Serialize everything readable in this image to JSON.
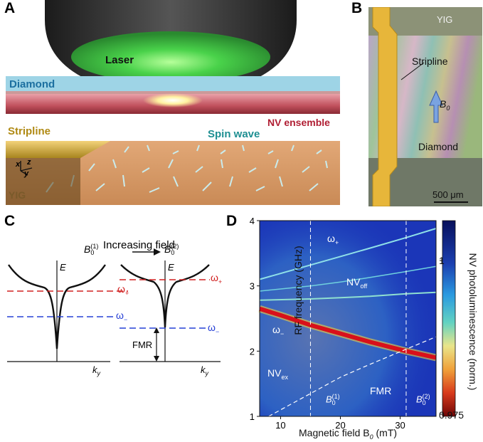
{
  "panels": {
    "A": {
      "label": "A",
      "laser": "Laser",
      "diamond": "Diamond",
      "nv_ensemble": "NV ensemble",
      "stripline": "Stripline",
      "spin_wave": "Spin wave",
      "yig": "YIG",
      "axis_x": "x",
      "axis_y": "y",
      "axis_z": "z"
    },
    "B": {
      "label": "B",
      "yig": "YIG",
      "stripline": "Stripline",
      "field": "B",
      "field_sub": "0",
      "diamond": "Diamond",
      "scale_bar": "500 μm"
    },
    "C": {
      "label": "C",
      "b1": "B",
      "b1_sub": "0",
      "b1_sup": "(1)",
      "arrow_text": "Increasing field",
      "b2": "B",
      "b2_sub": "0",
      "b2_sup": "(2)",
      "energy": "E",
      "omega_plus": "ω",
      "omega_plus_sub": "+",
      "omega_minus": "ω",
      "omega_minus_sub": "−",
      "fmr": "FMR",
      "k_axis": "k",
      "k_sub": "y"
    },
    "D": {
      "label": "D",
      "colorbar_label": "NV photoluminescence (norm.)",
      "colorbar_ticks": [
        "1",
        "0.975"
      ],
      "annotations": {
        "omega_plus": "ω",
        "omega_plus_sub": "+",
        "nv_off": "NV",
        "nv_off_sub": "off",
        "omega_minus": "ω",
        "omega_minus_sub": "−",
        "nv_ex": "NV",
        "nv_ex_sub": "ex",
        "fmr": "FMR",
        "b1": "B",
        "b1_sub": "0",
        "b1_sup": "(1)",
        "b2": "B",
        "b2_sub": "0",
        "b2_sup": "(2)"
      }
    }
  },
  "chart_data": {
    "type": "heatmap",
    "xlabel": "Magnetic field B",
    "xlabel_sub": "0",
    "xlabel_unit": " (mT)",
    "ylabel": "RF frequency (GHz)",
    "xlim": [
      6.5,
      36
    ],
    "ylim": [
      1,
      4
    ],
    "x_ticks": [
      "10",
      "20",
      "30"
    ],
    "x_tick_values": [
      10,
      20,
      30
    ],
    "y_ticks": [
      "1",
      "2",
      "3",
      "4"
    ],
    "y_tick_values": [
      1,
      2,
      3,
      4
    ],
    "vlines": [
      15,
      31
    ],
    "series": [
      {
        "name": "ω+",
        "x": [
          6.5,
          15,
          20,
          25,
          31,
          36
        ],
        "y": [
          3.1,
          3.32,
          3.45,
          3.58,
          3.74,
          3.88
        ]
      },
      {
        "name": "NVoff",
        "x": [
          6.5,
          15,
          20,
          25,
          31,
          36
        ],
        "y": [
          2.92,
          3.0,
          3.06,
          3.13,
          3.22,
          3.3
        ]
      },
      {
        "name": "ω− (upper)",
        "x": [
          6.5,
          15,
          20,
          25,
          31,
          36
        ],
        "y": [
          2.78,
          2.8,
          2.82,
          2.84,
          2.88,
          2.9
        ]
      },
      {
        "name": "ω−",
        "x": [
          6.5,
          10,
          15,
          20,
          25,
          31,
          36
        ],
        "y": [
          2.65,
          2.55,
          2.4,
          2.27,
          2.14,
          2.0,
          1.9
        ]
      },
      {
        "name": "FMR",
        "x": [
          8,
          15,
          20,
          25,
          31,
          36
        ],
        "y": [
          1.0,
          1.35,
          1.6,
          1.8,
          2.03,
          2.22
        ]
      }
    ],
    "colorbar": {
      "min": 0.975,
      "max": 1.0
    }
  }
}
